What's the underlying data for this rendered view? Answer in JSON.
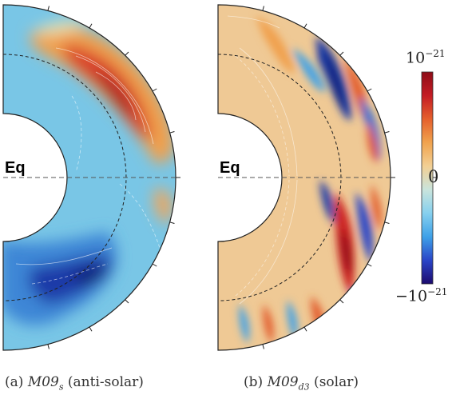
{
  "panels": [
    {
      "id": "a",
      "equator_label": "Eq",
      "caption_prefix": "(a) ",
      "caption_model": "M09",
      "caption_sub": "s",
      "caption_suffix": " (anti-solar)",
      "background_color": "#79c6e6"
    },
    {
      "id": "b",
      "equator_label": "Eq",
      "caption_prefix": "(b) ",
      "caption_model": "M09",
      "caption_sub": "d3",
      "caption_suffix": " (solar)",
      "background_color": "#efc995"
    }
  ],
  "colorbar": {
    "max_base": "10",
    "max_exp": "−21",
    "mid_label": "0",
    "min_base": "−10",
    "min_exp": "−21",
    "colors": [
      "#1c0a6e",
      "#2a45c8",
      "#3ea1e8",
      "#86d0ee",
      "#c9e4dc",
      "#f2cf94",
      "#f0a34e",
      "#e5602c",
      "#c41c24",
      "#8e0c17"
    ]
  }
}
